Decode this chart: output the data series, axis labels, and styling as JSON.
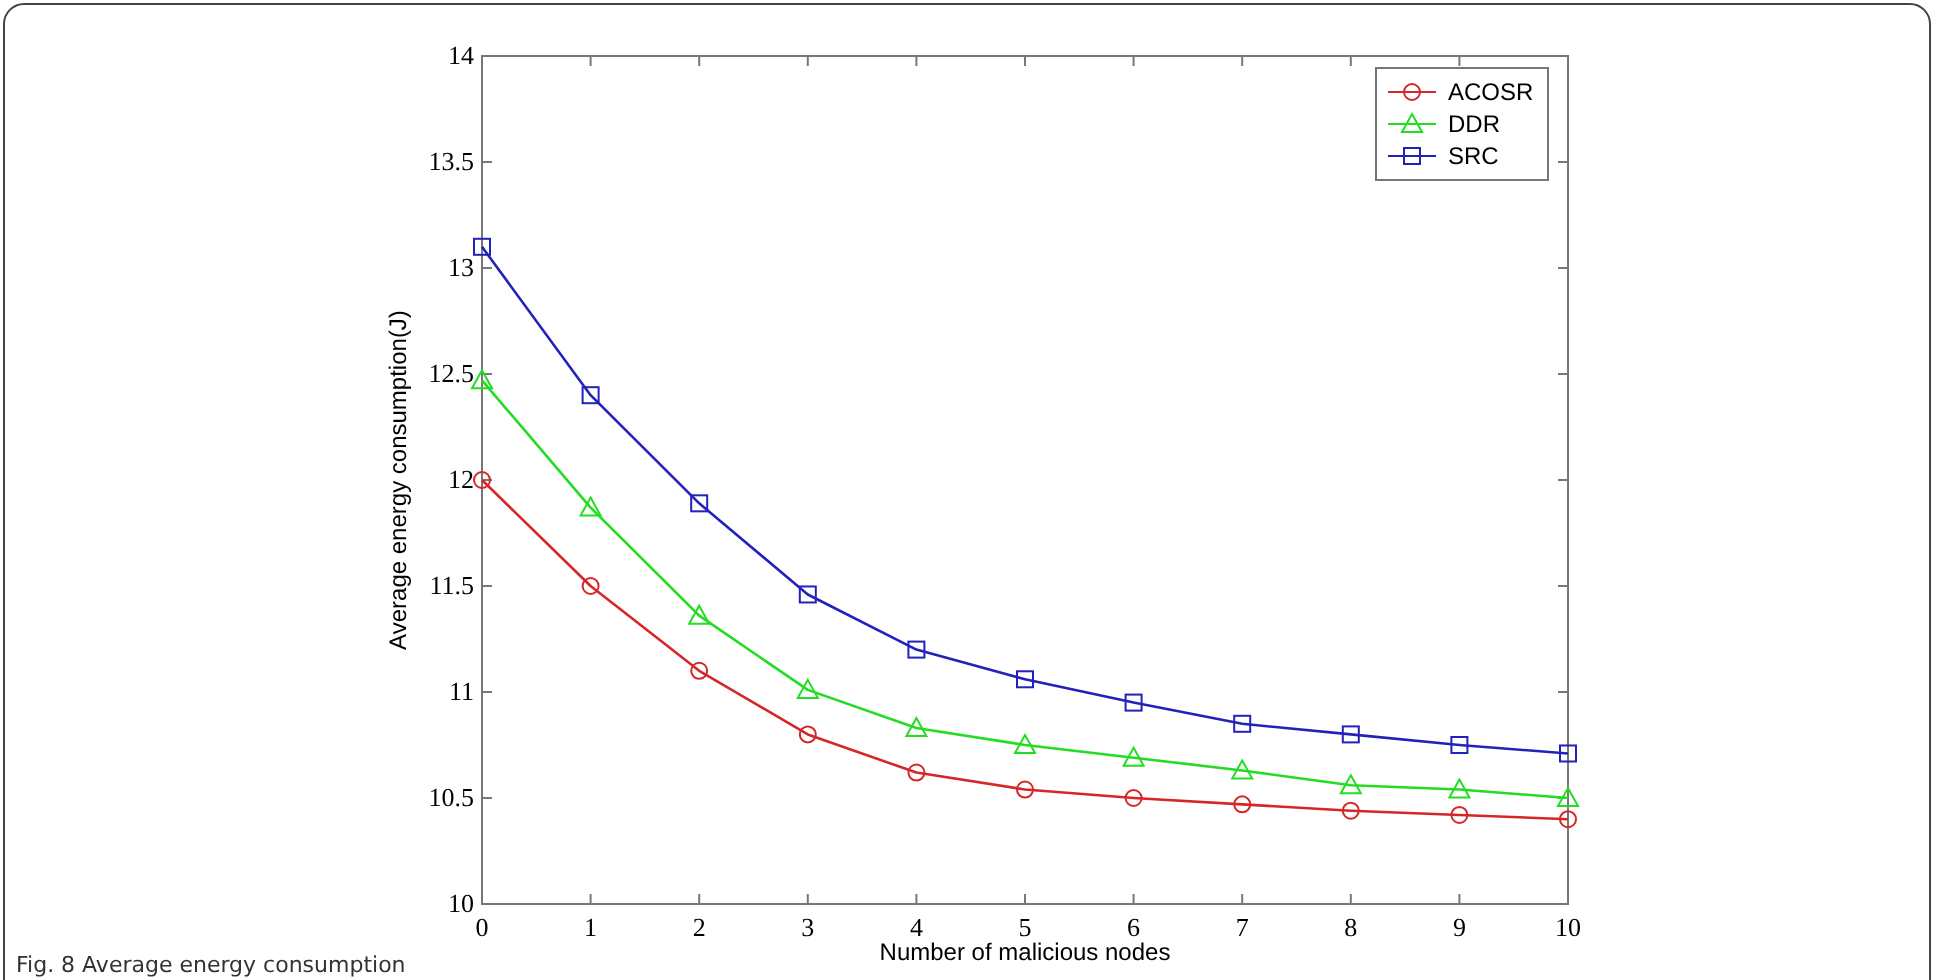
{
  "chart_data": {
    "type": "line",
    "xlabel": "Number of malicious nodes",
    "ylabel": "Average energy consumption(J)",
    "x": [
      0,
      1,
      2,
      3,
      4,
      5,
      6,
      7,
      8,
      9,
      10
    ],
    "series": [
      {
        "name": "ACOSR",
        "color": "#d62728",
        "marker": "circle",
        "values": [
          12.0,
          11.5,
          11.1,
          10.8,
          10.62,
          10.54,
          10.5,
          10.47,
          10.44,
          10.42,
          10.4
        ]
      },
      {
        "name": "DDR",
        "color": "#22dd22",
        "marker": "triangle",
        "values": [
          12.47,
          11.87,
          11.36,
          11.01,
          10.83,
          10.75,
          10.69,
          10.63,
          10.56,
          10.54,
          10.5
        ]
      },
      {
        "name": "SRC",
        "color": "#2222bb",
        "marker": "square",
        "values": [
          13.1,
          12.4,
          11.89,
          11.46,
          11.2,
          11.06,
          10.95,
          10.85,
          10.8,
          10.75,
          10.71
        ]
      }
    ],
    "xlim": [
      0,
      10
    ],
    "xticks": [
      0,
      1,
      2,
      3,
      4,
      5,
      6,
      7,
      8,
      9,
      10
    ],
    "ylim": [
      10,
      14
    ],
    "yticks": [
      10,
      10.5,
      11,
      11.5,
      12,
      12.5,
      13,
      13.5,
      14
    ],
    "legend": "top right",
    "grid": false,
    "line_style": "solid",
    "annotations": [
      "Fig. 8 Average energy consumption"
    ]
  }
}
